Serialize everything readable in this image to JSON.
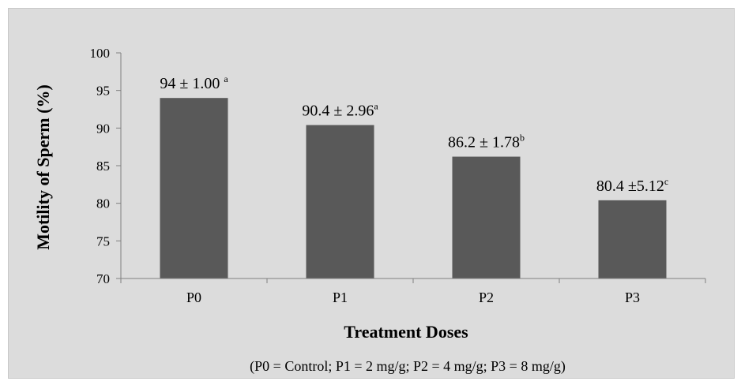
{
  "chart_data": {
    "type": "bar",
    "title": "",
    "categories": [
      "P0",
      "P1",
      "P2",
      "P3"
    ],
    "values": [
      94,
      90.4,
      86.2,
      80.4
    ],
    "data_labels": [
      {
        "text": "94 ± 1.00 ",
        "sup": "a"
      },
      {
        "text": "90.4 ± 2.96",
        "sup": "a"
      },
      {
        "text": "86.2 ± 1.78",
        "sup": "b"
      },
      {
        "text": "80.4 ±5.12",
        "sup": "c"
      }
    ],
    "xlabel": "Treatment Doses",
    "ylabel": "Motility of  Sperm (%)",
    "ylim": [
      70,
      100
    ],
    "yticks": [
      70,
      75,
      80,
      85,
      90,
      95,
      100
    ],
    "bar_color": "#595959",
    "grid": false,
    "note": "(P0 = Control;   P1 = 2 mg/g;   P2 = 4 mg/g; P3 = 8 mg/g)"
  }
}
